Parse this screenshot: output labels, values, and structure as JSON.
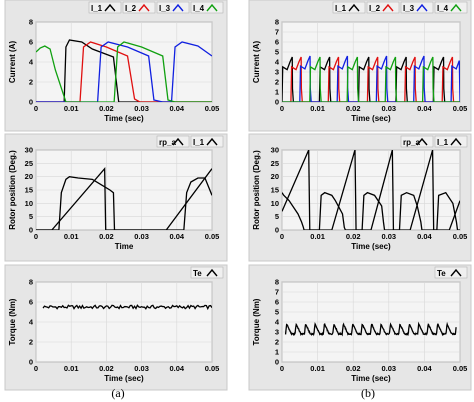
{
  "panel_labels": [
    "(a)",
    "(b)"
  ],
  "colors": {
    "I_1": "#000000",
    "I_2": "#e01010",
    "I_3": "#1020e0",
    "I_4": "#10a010",
    "rp_a": "#000000",
    "Te": "#000000",
    "frame": "#c8c8c8",
    "plot_bg": "#f4f4f4",
    "grid": "#ffffff"
  },
  "chart_data": [
    {
      "id": "a-current",
      "type": "line",
      "title": "",
      "xlabel": "Time (sec)",
      "ylabel": "Current (A)",
      "xlim": [
        0,
        0.05
      ],
      "ylim": [
        0,
        8
      ],
      "xticks": [
        "0",
        "0.01",
        "0.02",
        "0.03",
        "0.04",
        "0.05"
      ],
      "yticks": [
        "0",
        "2",
        "4",
        "6",
        "8"
      ],
      "legend": [
        "I_1",
        "I_2",
        "I_3",
        "I_4"
      ],
      "legend_position": "top-right",
      "grid": true,
      "series": [
        {
          "name": "I_1",
          "x": [
            0,
            0.0045,
            0.008,
            0.0085,
            0.0095,
            0.013,
            0.016,
            0.022,
            0.0235,
            0.05
          ],
          "y": [
            0,
            0,
            0,
            5.5,
            6.2,
            6.0,
            5.3,
            4.5,
            0,
            0
          ]
        },
        {
          "name": "I_2",
          "x": [
            0,
            0.008,
            0.0125,
            0.0135,
            0.0155,
            0.02,
            0.026,
            0.028,
            0.0295,
            0.0325,
            0.05
          ],
          "y": [
            0,
            0,
            0,
            5.5,
            6.0,
            5.5,
            4.6,
            0.3,
            0,
            0,
            0
          ]
        },
        {
          "name": "I_3",
          "x": [
            0,
            0.01,
            0.0175,
            0.0185,
            0.0205,
            0.026,
            0.032,
            0.0335,
            0.036,
            0.0385,
            0.0395,
            0.0415,
            0.046,
            0.05
          ],
          "y": [
            0,
            0,
            0,
            5.5,
            6.0,
            5.5,
            4.6,
            0.2,
            0,
            0,
            5.5,
            6.0,
            5.6,
            4.6
          ]
        },
        {
          "name": "I_4",
          "x": [
            0,
            0.0012,
            0.0025,
            0.004,
            0.0055,
            0.0085,
            0.017,
            0.0222,
            0.0232,
            0.025,
            0.03,
            0.036,
            0.0375,
            0.0395,
            0.05
          ],
          "y": [
            5.0,
            5.4,
            5.6,
            5.3,
            3.2,
            0,
            0,
            0,
            5.5,
            6.0,
            5.5,
            4.6,
            0.2,
            0,
            0
          ]
        }
      ]
    },
    {
      "id": "a-rotor",
      "type": "line",
      "title": "",
      "xlabel": "Time",
      "ylabel": "Rotor position (Deg.)",
      "xlim": [
        0,
        0.05
      ],
      "ylim": [
        0,
        30
      ],
      "xticks": [
        "0",
        "0.01",
        "0.02",
        "0.03",
        "0.04",
        "0.05"
      ],
      "yticks": [
        "0",
        "5",
        "10",
        "15",
        "20",
        "25",
        "30"
      ],
      "legend": [
        "rp_a",
        "I_1"
      ],
      "legend_position": "top-right",
      "grid": true,
      "series": [
        {
          "name": "rp_a",
          "x": [
            0,
            0.0045,
            0.0195,
            0.0198,
            0.037,
            0.05
          ],
          "y": [
            0,
            0,
            23,
            0,
            0,
            23
          ]
        },
        {
          "name": "I_1",
          "x": [
            0,
            0.0065,
            0.0072,
            0.0085,
            0.0095,
            0.012,
            0.016,
            0.0185,
            0.021,
            0.022,
            0.0223,
            0.042,
            0.0428,
            0.044,
            0.046,
            0.048,
            0.05
          ],
          "y": [
            0,
            0,
            14,
            19,
            20,
            19.5,
            19,
            17,
            15,
            14,
            0,
            0,
            14,
            18,
            19.5,
            19.5,
            13
          ]
        }
      ]
    },
    {
      "id": "a-torque",
      "type": "line",
      "title": "",
      "xlabel": "Time (sec)",
      "ylabel": "Torque (Nm)",
      "xlim": [
        0,
        0.05
      ],
      "ylim": [
        0,
        8
      ],
      "xticks": [
        "0",
        "0.01",
        "0.02",
        "0.03",
        "0.04",
        "0.05"
      ],
      "yticks": [
        "0",
        "2",
        "4",
        "6",
        "8"
      ],
      "legend": [
        "Te"
      ],
      "legend_position": "top-right",
      "grid": true,
      "series": [
        {
          "name": "Te",
          "x": [
            0.002,
            0.05
          ],
          "y_mean": 5.5,
          "ripple": 0.35
        }
      ]
    },
    {
      "id": "b-current",
      "type": "line",
      "title": "",
      "xlabel": "Time (sec)",
      "ylabel": "Current (A)",
      "xlim": [
        0,
        0.05
      ],
      "ylim": [
        0,
        8
      ],
      "xticks": [
        "0",
        "0.01",
        "0.02",
        "0.03",
        "0.04",
        "0.05"
      ],
      "yticks": [
        "0",
        "1",
        "2",
        "3",
        "4",
        "5",
        "6",
        "7",
        "8"
      ],
      "legend": [
        "I_1",
        "I_2",
        "I_3",
        "I_4"
      ],
      "legend_position": "top-right",
      "grid": true,
      "series": [
        {
          "name": "I_1",
          "pulse_starts": [
            0.0,
            0.0105,
            0.0215,
            0.032,
            0.0425
          ],
          "pulse_peak": 4.5,
          "pulse_width": 0.0032
        },
        {
          "name": "I_2",
          "pulse_starts": [
            0.0025,
            0.013,
            0.024,
            0.0345,
            0.045
          ],
          "pulse_peak": 4.5,
          "pulse_width": 0.0032
        },
        {
          "name": "I_3",
          "pulse_starts": [
            0.005,
            0.0155,
            0.0265,
            0.037,
            0.0475
          ],
          "pulse_peak": 4.6,
          "pulse_width": 0.0032
        },
        {
          "name": "I_4",
          "pulse_starts": [
            0.0078,
            0.0183,
            0.029,
            0.0395
          ],
          "pulse_peak": 4.5,
          "pulse_width": 0.0032
        }
      ]
    },
    {
      "id": "b-rotor",
      "type": "line",
      "title": "",
      "xlabel": "Time (sec)",
      "ylabel": "Rotor position (Deg.)",
      "xlim": [
        0,
        0.05
      ],
      "ylim": [
        0,
        30
      ],
      "xticks": [
        "0",
        "0.01",
        "0.02",
        "0.03",
        "0.04",
        "0.05"
      ],
      "yticks": [
        "0",
        "5",
        "10",
        "15",
        "20",
        "25",
        "30"
      ],
      "legend": [
        "rp_a",
        "I_1"
      ],
      "legend_position": "top-right",
      "grid": true,
      "series": [
        {
          "name": "rp_a",
          "x": [
            0,
            0.0075,
            0.0078,
            0.014,
            0.0205,
            0.0208,
            0.025,
            0.031,
            0.0313,
            0.036,
            0.0423,
            0.0426,
            0.047,
            0.05
          ],
          "y": [
            7,
            30,
            0,
            0,
            30,
            0,
            0,
            30,
            0,
            0,
            30,
            0,
            0,
            11
          ]
        },
        {
          "name": "I_1",
          "x": [
            0,
            0.0005,
            0.002,
            0.003,
            0.0045,
            0.0055,
            0.006,
            0.0062,
            0.0105,
            0.011,
            0.012,
            0.014,
            0.015,
            0.017,
            0.0175,
            0.0178,
            0.0225,
            0.023,
            0.024,
            0.026,
            0.028,
            0.0285,
            0.0288,
            0.033,
            0.0335,
            0.035,
            0.037,
            0.038,
            0.039,
            0.0393,
            0.0435,
            0.044,
            0.046,
            0.048,
            0.049,
            0.0493,
            0.05
          ],
          "y": [
            14,
            13,
            11,
            9,
            6,
            3,
            1,
            0,
            0,
            13,
            14,
            13,
            11,
            6,
            1,
            0,
            0,
            13,
            14,
            13,
            9,
            3,
            0,
            0,
            13,
            14,
            13,
            9,
            3,
            0,
            0,
            13,
            14,
            10,
            3,
            0,
            0
          ]
        }
      ]
    },
    {
      "id": "b-torque",
      "type": "line",
      "title": "",
      "xlabel": "Time (sec)",
      "ylabel": "Torque (Nm)",
      "xlim": [
        0,
        0.05
      ],
      "ylim": [
        0,
        8
      ],
      "xticks": [
        "0",
        "0.01",
        "0.02",
        "0.03",
        "0.04",
        "0.05"
      ],
      "yticks": [
        "0",
        "1",
        "2",
        "3",
        "4",
        "5",
        "6",
        "7",
        "8"
      ],
      "legend": [
        "Te"
      ],
      "legend_position": "top-right",
      "grid": true,
      "series": [
        {
          "name": "Te",
          "x": [
            0.001,
            0.049
          ],
          "y_base": 2.8,
          "peak": 3.8,
          "period": 0.00265
        }
      ]
    }
  ]
}
